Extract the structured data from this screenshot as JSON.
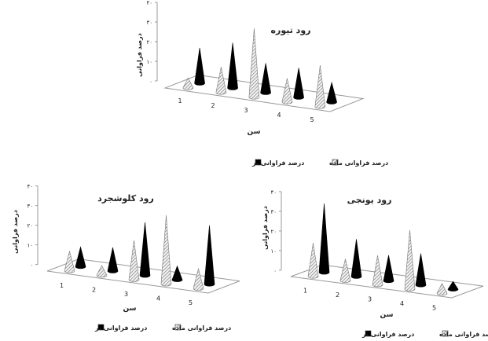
{
  "chart_data": [
    {
      "type": "bar",
      "bar_shape": "cone-3d",
      "title": "رود تیوره",
      "xlabel": "سن",
      "ylabel": "درصد فراوانی",
      "categories": [
        "1",
        "2",
        "3",
        "4",
        "5"
      ],
      "yticks": [
        "۰",
        "۱۰",
        "۲۰",
        "۳۰",
        "۴۰"
      ],
      "ylim": [
        0,
        40
      ],
      "series": [
        {
          "name": "درصد فراوانی ماده",
          "values": [
            5,
            13,
            35,
            12,
            21
          ]
        },
        {
          "name": "درصد فراوانی نر",
          "values": [
            18,
            23,
            15,
            15,
            10
          ]
        }
      ],
      "legend": [
        "درصد فراوانی ماده",
        "درصد فراوانی نر"
      ],
      "grid": false
    },
    {
      "type": "bar",
      "bar_shape": "cone-3d",
      "title": "رود کلوشجرد",
      "xlabel": "سن",
      "ylabel": "درصد فراوانی",
      "categories": [
        "1",
        "2",
        "3",
        "4",
        "5"
      ],
      "yticks": [
        "۰",
        "۱۰",
        "۲۰",
        "۳۰",
        "۴۰"
      ],
      "ylim": [
        0,
        40
      ],
      "series": [
        {
          "name": "درصد فراوانی ماده",
          "values": [
            10,
            5,
            20,
            35,
            10
          ]
        },
        {
          "name": "درصد فراوانی نر",
          "values": [
            10,
            12,
            27,
            7,
            30
          ]
        }
      ],
      "legend": [
        "درصد فراوانی ماده",
        "درصد فراوانی نر"
      ],
      "grid": false
    },
    {
      "type": "bar",
      "bar_shape": "cone-3d",
      "title": "رود یونجی",
      "xlabel": "سن",
      "ylabel": "درصد فراوانی",
      "categories": [
        "1",
        "2",
        "3",
        "4",
        "5"
      ],
      "yticks": [
        "۰",
        "۱۰",
        "۲۰",
        "۳۰",
        "۴۰"
      ],
      "ylim": [
        0,
        40
      ],
      "series": [
        {
          "name": "درصد فراوانی ماده",
          "values": [
            17,
            11,
            15,
            30,
            5
          ]
        },
        {
          "name": "درصد فراوانی نر",
          "values": [
            35,
            19,
            13,
            16,
            4
          ]
        }
      ],
      "legend": [
        "درصد فراوانی ماده",
        "درصد فراوانی نر"
      ],
      "grid": false
    }
  ],
  "colors": {
    "female": "#bdbdbd",
    "male": "#000000",
    "axis": "#999999",
    "text": "#222222"
  }
}
